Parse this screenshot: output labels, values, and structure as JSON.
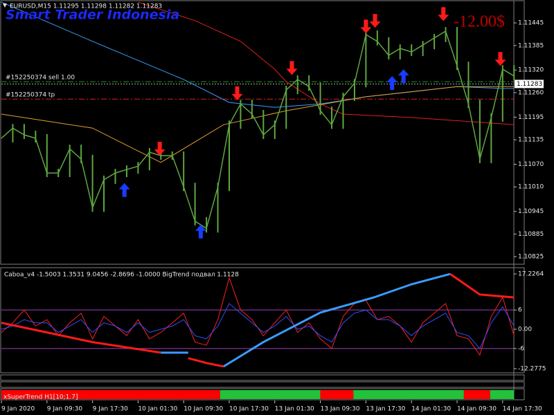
{
  "chart_data": [
    {
      "type": "price",
      "title": "EURUSD,M15  1.11295 1.11298 1.11282 1.11283",
      "watermark": "Smart Trader Indonesia",
      "annotation": "-12.00$",
      "categories": [
        "9 Jan 2020",
        null,
        null,
        null,
        "9 Jan 09:30",
        null,
        null,
        null,
        "9 Jan 17:30",
        null,
        null,
        null,
        "10 Jan 01:30",
        null,
        null,
        null,
        "10 Jan 09:30",
        null,
        null,
        null,
        "10 Jan 17:30",
        null,
        null,
        null,
        "13 Jan 01:30",
        null,
        null,
        null,
        "13 Jan 09:30",
        null,
        null,
        null,
        "13 Jan 17:30",
        null,
        null,
        null,
        "14 Jan 01:30",
        null,
        null,
        null,
        "14 Jan 09:30",
        null,
        null,
        null,
        "14 Jan 17:30",
        null
      ],
      "values": [
        1.11139,
        1.11166,
        1.11148,
        1.11139,
        1.11047,
        1.11047,
        1.11111,
        1.11084,
        1.10955,
        1.11029,
        1.11047,
        1.11056,
        1.11065,
        1.11102,
        1.11093,
        1.11093,
        1.1101,
        1.10919,
        1.109,
        1.1101,
        1.11175,
        1.1123,
        1.11203,
        1.11148,
        1.11175,
        1.11267,
        1.11295,
        1.11276,
        1.11212,
        1.11175,
        1.11249,
        1.11285,
        1.11414,
        1.11396,
        1.11359,
        1.11377,
        1.11368,
        1.11386,
        1.11405,
        1.11423,
        1.11331,
        1.1123,
        1.11084,
        1.11194,
        1.11322,
        1.11304
      ],
      "color": "#5fa840",
      "ylim": [
        1.10805,
        1.11502
      ],
      "yticks": [
        1.11445,
        1.11385,
        {
          "value": 1.1132,
          "label": "1.11320"
        },
        {
          "value": 1.1126,
          "label": "1.11260"
        },
        1.11195,
        1.11135,
        {
          "value": 1.1107,
          "label": "1.11070"
        },
        {
          "value": 1.1101,
          "label": "1.11010"
        },
        1.10945,
        1.10885,
        1.10825
      ],
      "series": [
        {
          "color": "#3aa0ff",
          "x": [
            0,
            8,
            16,
            20,
            24,
            28,
            32,
            36,
            40,
            44,
            45
          ],
          "values": [
            1.115,
            1.11396,
            1.11295,
            1.11234,
            1.11221,
            1.1123,
            1.11249,
            1.11262,
            1.11276,
            1.11271,
            1.11271
          ]
        },
        {
          "color": "#e02020",
          "x": [
            12,
            17,
            21,
            24,
            25,
            28,
            30,
            36,
            45
          ],
          "values": [
            1.115,
            1.11451,
            1.11396,
            1.11322,
            1.11289,
            1.1123,
            1.11203,
            1.11194,
            1.11175
          ]
        },
        {
          "color": "#e0a030",
          "x": [
            0,
            8,
            14,
            19.5,
            25,
            32,
            40,
            45
          ],
          "values": [
            1.11203,
            1.11166,
            1.11075,
            1.11175,
            1.11212,
            1.11249,
            1.11276,
            1.11276
          ]
        }
      ],
      "arrows": [
        {
          "direction": "down",
          "color": "#ff1a1a",
          "x": [
            13.9,
            20.7,
            25.5,
            32,
            32.8,
            38.8,
            43.8
          ],
          "values": [
            1.11093,
            1.1124,
            1.11307,
            1.11417,
            1.11432,
            1.1145,
            1.11331
          ]
        },
        {
          "direction": "up",
          "color": "#1a3cff",
          "x": [
            10.8,
            17.5,
            34.3,
            35.3
          ],
          "values": [
            1.1102,
            1.1091,
            1.11304,
            1.11322
          ]
        }
      ],
      "orders": [
        {
          "label": "#152250374 sell 1.00",
          "value": 1.11289,
          "color": "#1fa01f"
        },
        {
          "label": "#152250374 tp",
          "value": 1.11243,
          "color": "#e02020"
        }
      ],
      "current_price": 1.11283
    },
    {
      "type": "oscillator",
      "title": "Caboa_v4 -1.5003 1.3531 9.0456 -2.8696 -1.0000  BigTrend подвал 1.1128",
      "ylim": [
        -13.35,
        18.95
      ],
      "yticks": [
        17.2264,
        6,
        {
          "value": 0,
          "label": "0.00"
        },
        -6,
        -12.2775
      ],
      "levels": [
        6,
        -6
      ],
      "level_color": "#a040c0",
      "series": [
        {
          "color": "#ff2020",
          "width": 1,
          "values": [
            -1,
            2,
            6,
            1,
            3,
            -2,
            2,
            5,
            -3,
            4,
            1,
            -2,
            3,
            -3,
            -1,
            2,
            5,
            -4,
            -5,
            3,
            16,
            6,
            3,
            -2,
            2,
            6,
            -1,
            2,
            -3,
            -6,
            4,
            8,
            9,
            3,
            4,
            1,
            -4,
            2,
            5,
            8,
            -2,
            -3,
            -8,
            4,
            10,
            -2
          ]
        },
        {
          "color": "#3050ff",
          "width": 1,
          "values": [
            0,
            1,
            3,
            2,
            2,
            -1,
            1,
            3,
            -1,
            2,
            1,
            -1,
            2,
            -1,
            0,
            1,
            3,
            -2,
            -3,
            1,
            8,
            5,
            2,
            -1,
            1,
            4,
            0,
            1,
            -2,
            -4,
            2,
            5,
            6,
            3,
            3,
            1,
            -2,
            1,
            3,
            5,
            -1,
            -2,
            -6,
            2,
            7,
            1
          ]
        },
        {
          "color": "#ff1a1a",
          "width": 3,
          "x": [
            0,
            4,
            8,
            14
          ],
          "values": [
            2,
            -1,
            -4,
            -7.3
          ]
        },
        {
          "color": "#3a9cff",
          "width": 3,
          "x": [
            14,
            16.4
          ],
          "values": [
            -7.3,
            -7.3
          ]
        },
        {
          "color": "#ff1a1a",
          "width": 3,
          "x": [
            16.4,
            18,
            19.5
          ],
          "values": [
            -9,
            -10.5,
            -11.6
          ]
        },
        {
          "color": "#3a9cff",
          "width": 3,
          "x": [
            19.5,
            23,
            28,
            32.7,
            36,
            39.4
          ],
          "values": [
            -11.6,
            -4,
            5.2,
            9.9,
            14,
            17.2
          ]
        },
        {
          "color": "#ff1a1a",
          "width": 3,
          "x": [
            39.4,
            42,
            45
          ],
          "values": [
            17.2,
            10.8,
            9.9
          ]
        }
      ]
    },
    {
      "type": "trend_strip",
      "title": "xSuperTrend H1[10;1.7]",
      "segments": [
        {
          "from": 0,
          "to": 19.2,
          "color": "#ff0000"
        },
        {
          "from": 19.2,
          "to": 28,
          "color": "#22c33a"
        },
        {
          "from": 28,
          "to": 30.9,
          "color": "#ff0000"
        },
        {
          "from": 30.9,
          "to": 40.6,
          "color": "#22c33a"
        },
        {
          "from": 40.6,
          "to": 42.9,
          "color": "#ff0000"
        },
        {
          "from": 42.9,
          "to": 45,
          "color": "#22c33a"
        }
      ]
    }
  ]
}
